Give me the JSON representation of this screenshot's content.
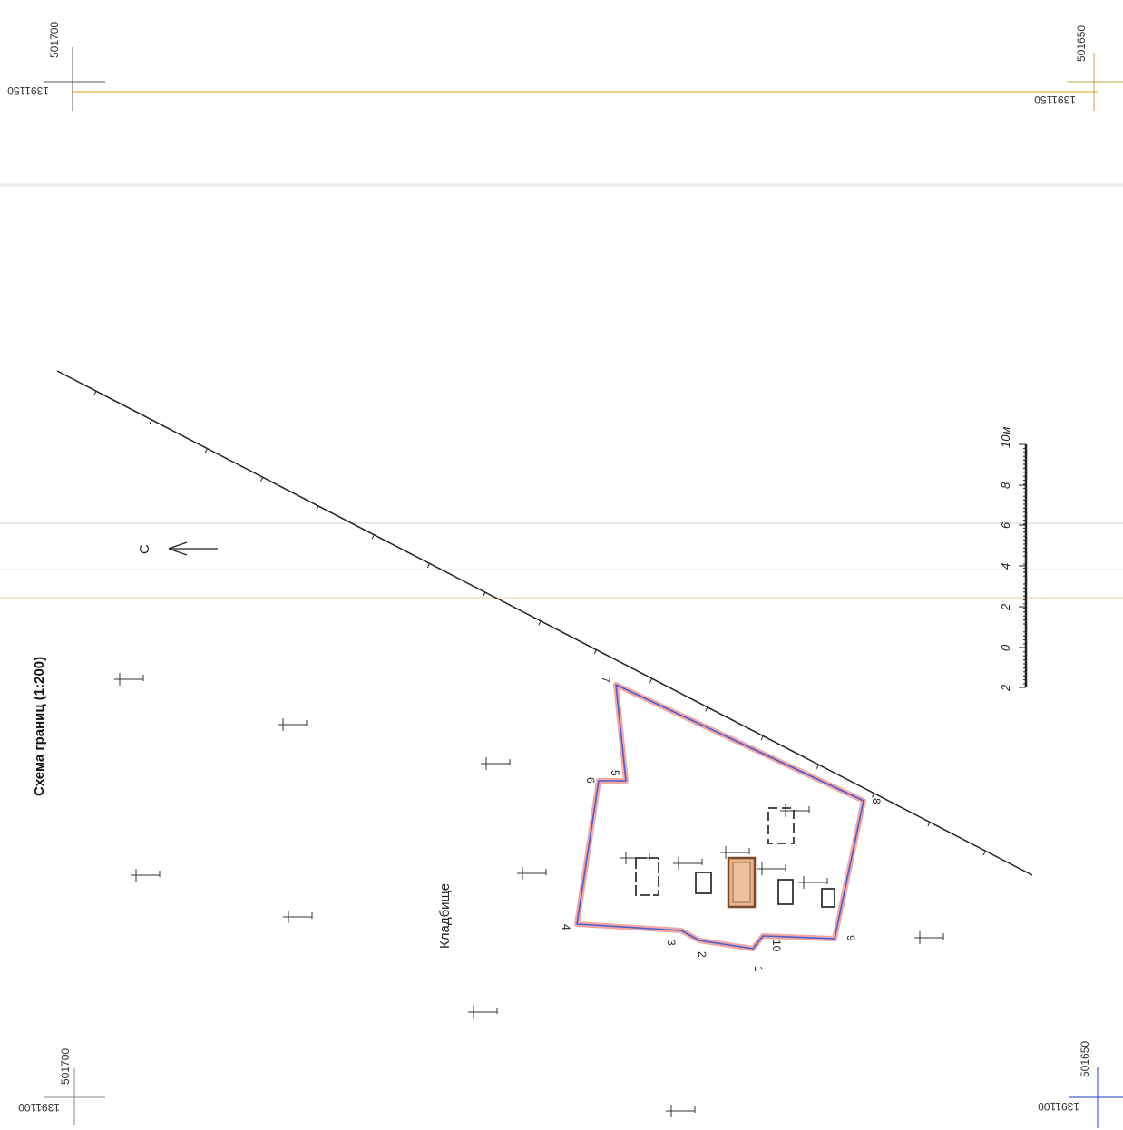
{
  "title": "Схема границ (1:200)",
  "place_label": "Кладбище",
  "north_label": "С",
  "corner_coords": {
    "top_left": {
      "x": "501700",
      "y": "1391150"
    },
    "top_right": {
      "x": "501650",
      "y": "1391150"
    },
    "bottom_left": {
      "x": "501700",
      "y": "1391100"
    },
    "bottom_right": {
      "x": "501650",
      "y": "1391100"
    }
  },
  "scale_bar": {
    "labels": [
      "2",
      "0",
      "2",
      "4",
      "6",
      "8",
      "10м"
    ]
  },
  "boundary_points": [
    "1",
    "2",
    "3",
    "4",
    "5",
    "6",
    "7",
    "8",
    "9",
    "10"
  ],
  "colors": {
    "boundary_line": "#4a5fc8",
    "boundary_halo": "#f2a6a6",
    "road_line": "#222222",
    "building_fill": "#e8b48a",
    "building_stroke": "#7a4a2a",
    "grid_orange": "#f0c060",
    "grid_blue": "#4a5fc8"
  }
}
